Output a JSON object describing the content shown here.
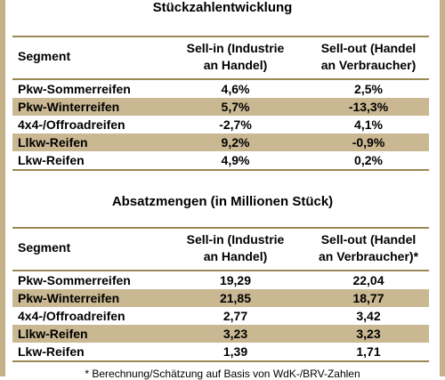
{
  "tables": [
    {
      "title": "Stückzahlentwicklung",
      "headers": [
        "Segment",
        "Sell-in (Industrie",
        "an Handel)",
        "Sell-out (Handel",
        "an Verbraucher)"
      ],
      "rows": [
        [
          "Pkw-Sommerreifen",
          "4,6%",
          "2,5%"
        ],
        [
          "Pkw-Winterreifen",
          "5,7%",
          "-13,3%"
        ],
        [
          "4x4-/Offroadreifen",
          "-2,7%",
          "4,1%"
        ],
        [
          "Llkw-Reifen",
          "9,2%",
          "-0,9%"
        ],
        [
          "Lkw-Reifen",
          "4,9%",
          "0,2%"
        ]
      ]
    },
    {
      "title": "Absatzmengen (in Millionen Stück)",
      "headers": [
        "Segment",
        "Sell-in (Industrie",
        "an Handel)",
        "Sell-out (Handel",
        "an Verbraucher)*"
      ],
      "rows": [
        [
          "Pkw-Sommerreifen",
          "19,29",
          "22,04"
        ],
        [
          "Pkw-Winterreifen",
          "21,85",
          "18,77"
        ],
        [
          "4x4-/Offroadreifen",
          "2,77",
          "3,42"
        ],
        [
          "Llkw-Reifen",
          "3,23",
          "3,23"
        ],
        [
          "Lkw-Reifen",
          "1,39",
          "1,71"
        ]
      ]
    }
  ],
  "footnote": "* Berechnung/Schätzung auf Basis von WdK-/BRV-Zahlen",
  "colors": {
    "frame": "#c4b089",
    "rule": "#9c8757",
    "shaded_row": "#c9b891"
  }
}
